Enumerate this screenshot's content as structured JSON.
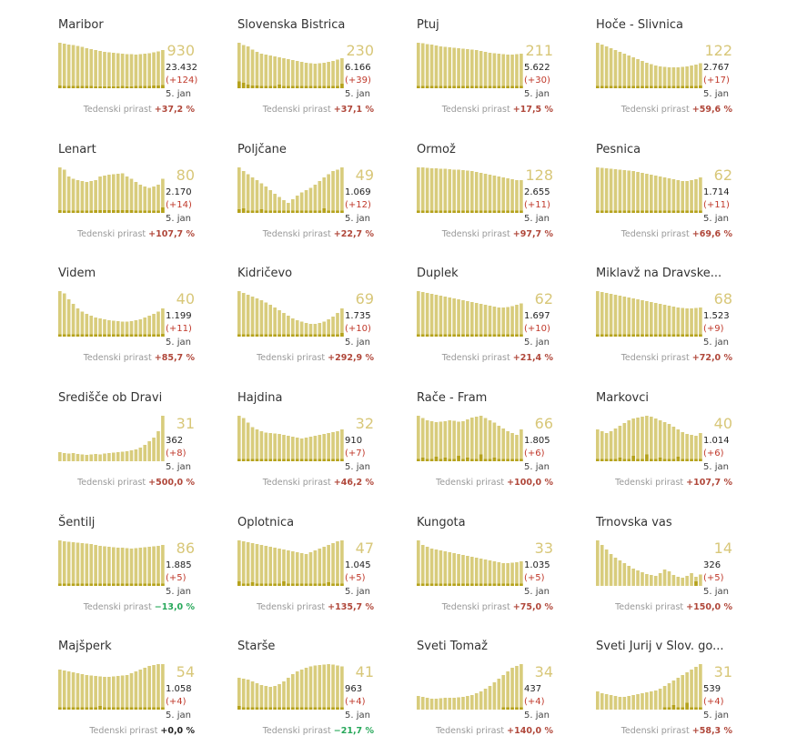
{
  "colors": {
    "bar": "#d8cc7c",
    "bar_dark": "#b5a21c",
    "big": "#d8c779",
    "growth_pos": "#b0473a",
    "growth_neg": "#27a85a"
  },
  "growth_label": "Tedenski prirast",
  "date_label": "5. jan",
  "chart_data": [
    {
      "type": "bar",
      "title": "Maribor",
      "big": "930",
      "total": "23.432",
      "delta": "(+124)",
      "growth": "+37,2 %",
      "values": [
        100,
        98,
        96,
        95,
        93,
        91,
        88,
        86,
        84,
        82,
        80,
        79,
        78,
        77,
        76,
        75,
        75,
        74,
        75,
        76,
        77,
        79,
        81,
        84
      ],
      "dark": [
        6,
        5,
        5,
        5,
        5,
        5,
        5,
        5,
        4,
        4,
        4,
        4,
        4,
        4,
        5,
        4,
        4,
        5,
        5,
        5,
        5,
        6,
        6,
        7
      ]
    },
    {
      "type": "bar",
      "title": "Slovenska Bistrica",
      "big": "230",
      "total": "6.166",
      "delta": "(+39)",
      "growth": "+37,1 %",
      "values": [
        100,
        95,
        92,
        85,
        80,
        76,
        74,
        72,
        70,
        68,
        66,
        64,
        62,
        60,
        58,
        56,
        55,
        54,
        55,
        56,
        58,
        60,
        63,
        66
      ],
      "dark": [
        15,
        12,
        8,
        6,
        6,
        5,
        5,
        5,
        5,
        8,
        5,
        5,
        5,
        5,
        5,
        5,
        5,
        5,
        5,
        5,
        5,
        5,
        5,
        10
      ]
    },
    {
      "type": "bar",
      "title": "Ptuj",
      "big": "211",
      "total": "5.622",
      "delta": "(+30)",
      "growth": "+17,5 %",
      "values": [
        100,
        99,
        97,
        96,
        94,
        92,
        91,
        90,
        89,
        88,
        87,
        86,
        85,
        84,
        82,
        80,
        78,
        77,
        76,
        75,
        74,
        74,
        75,
        76
      ],
      "dark": [
        5,
        5,
        5,
        5,
        5,
        5,
        5,
        5,
        5,
        5,
        5,
        5,
        5,
        5,
        5,
        5,
        5,
        5,
        5,
        5,
        5,
        5,
        5,
        5
      ]
    },
    {
      "type": "bar",
      "title": "Hoče - Slivnica",
      "big": "122",
      "total": "2.767",
      "delta": "(+17)",
      "growth": "+59,6 %",
      "values": [
        100,
        96,
        92,
        88,
        84,
        80,
        76,
        72,
        68,
        64,
        60,
        56,
        53,
        50,
        48,
        47,
        46,
        46,
        46,
        47,
        48,
        50,
        52,
        55
      ],
      "dark": [
        5,
        5,
        5,
        5,
        5,
        5,
        5,
        5,
        5,
        5,
        5,
        5,
        5,
        5,
        5,
        5,
        5,
        5,
        5,
        5,
        5,
        5,
        5,
        6
      ]
    },
    {
      "type": "bar",
      "title": "Lenart",
      "big": "80",
      "total": "2.170",
      "delta": "(+14)",
      "growth": "+107,7 %",
      "values": [
        100,
        95,
        80,
        75,
        72,
        70,
        68,
        70,
        72,
        80,
        82,
        84,
        85,
        86,
        87,
        80,
        75,
        68,
        62,
        58,
        55,
        58,
        62,
        75
      ],
      "dark": [
        6,
        5,
        5,
        5,
        5,
        5,
        5,
        5,
        6,
        6,
        6,
        6,
        6,
        6,
        6,
        6,
        6,
        5,
        5,
        5,
        5,
        5,
        5,
        12
      ]
    },
    {
      "type": "bar",
      "title": "Poljčane",
      "big": "49",
      "total": "1.069",
      "delta": "(+12)",
      "growth": "+22,7 %",
      "values": [
        100,
        92,
        85,
        78,
        72,
        65,
        58,
        50,
        42,
        35,
        28,
        22,
        30,
        38,
        45,
        50,
        55,
        62,
        70,
        78,
        85,
        92,
        95,
        100
      ],
      "dark": [
        8,
        10,
        5,
        5,
        5,
        8,
        5,
        5,
        5,
        5,
        5,
        5,
        5,
        5,
        5,
        5,
        5,
        5,
        5,
        10,
        5,
        5,
        5,
        5
      ]
    },
    {
      "type": "bar",
      "title": "Ormož",
      "big": "128",
      "total": "2.655",
      "delta": "(+11)",
      "growth": "+97,7 %",
      "values": [
        100,
        100,
        99,
        98,
        98,
        97,
        97,
        96,
        95,
        95,
        94,
        93,
        92,
        90,
        88,
        86,
        84,
        82,
        80,
        78,
        76,
        74,
        72,
        72
      ],
      "dark": [
        5,
        5,
        5,
        5,
        5,
        5,
        5,
        5,
        5,
        5,
        5,
        5,
        5,
        5,
        5,
        5,
        5,
        5,
        5,
        5,
        5,
        5,
        5,
        5
      ]
    },
    {
      "type": "bar",
      "title": "Pesnica",
      "big": "62",
      "total": "1.714",
      "delta": "(+11)",
      "growth": "+69,6 %",
      "values": [
        100,
        99,
        98,
        97,
        96,
        95,
        94,
        93,
        92,
        90,
        88,
        86,
        84,
        82,
        80,
        78,
        76,
        74,
        72,
        70,
        70,
        72,
        74,
        78
      ],
      "dark": [
        5,
        5,
        5,
        5,
        5,
        5,
        5,
        5,
        5,
        5,
        5,
        5,
        5,
        5,
        5,
        5,
        5,
        5,
        5,
        5,
        5,
        5,
        5,
        5
      ]
    },
    {
      "type": "bar",
      "title": "Videm",
      "big": "40",
      "total": "1.199",
      "delta": "(+11)",
      "growth": "+85,7 %",
      "values": [
        100,
        95,
        82,
        72,
        62,
        55,
        50,
        46,
        42,
        40,
        38,
        36,
        35,
        34,
        33,
        33,
        34,
        36,
        38,
        42,
        46,
        50,
        55,
        62
      ],
      "dark": [
        5,
        5,
        5,
        5,
        5,
        5,
        5,
        5,
        5,
        5,
        5,
        5,
        5,
        5,
        5,
        5,
        5,
        5,
        5,
        5,
        5,
        5,
        5,
        6
      ]
    },
    {
      "type": "bar",
      "title": "Kidričevo",
      "big": "69",
      "total": "1.735",
      "delta": "(+10)",
      "growth": "+292,9 %",
      "values": [
        100,
        96,
        92,
        88,
        84,
        80,
        75,
        70,
        64,
        58,
        52,
        46,
        40,
        36,
        33,
        30,
        28,
        28,
        30,
        33,
        38,
        44,
        52,
        62
      ],
      "dark": [
        5,
        5,
        5,
        5,
        5,
        5,
        5,
        5,
        5,
        5,
        5,
        5,
        5,
        5,
        5,
        5,
        5,
        5,
        5,
        5,
        5,
        5,
        5,
        8
      ]
    },
    {
      "type": "bar",
      "title": "Duplek",
      "big": "62",
      "total": "1.697",
      "delta": "(+10)",
      "growth": "+21,4 %",
      "values": [
        100,
        98,
        96,
        94,
        92,
        90,
        88,
        86,
        84,
        82,
        80,
        78,
        76,
        74,
        72,
        70,
        68,
        66,
        64,
        64,
        65,
        67,
        70,
        73
      ],
      "dark": [
        5,
        5,
        5,
        5,
        5,
        5,
        5,
        5,
        5,
        5,
        5,
        5,
        5,
        5,
        5,
        5,
        5,
        5,
        5,
        5,
        5,
        5,
        5,
        5
      ]
    },
    {
      "type": "bar",
      "title": "Miklavž na Dravske...",
      "big": "68",
      "total": "1.523",
      "delta": "(+9)",
      "growth": "+72,0 %",
      "values": [
        100,
        98,
        96,
        94,
        92,
        90,
        88,
        86,
        84,
        82,
        80,
        78,
        76,
        74,
        72,
        70,
        68,
        66,
        64,
        63,
        62,
        62,
        63,
        64
      ],
      "dark": [
        5,
        5,
        5,
        5,
        5,
        5,
        5,
        5,
        5,
        5,
        5,
        5,
        5,
        5,
        5,
        5,
        5,
        5,
        5,
        5,
        5,
        5,
        5,
        5
      ]
    },
    {
      "type": "bar",
      "title": "Središče ob Dravi",
      "big": "31",
      "total": "362",
      "delta": "(+8)",
      "growth": "+500,0 %",
      "values": [
        20,
        18,
        17,
        18,
        16,
        15,
        14,
        15,
        16,
        15,
        17,
        18,
        19,
        20,
        21,
        22,
        24,
        26,
        30,
        36,
        44,
        52,
        66,
        100
      ],
      "dark": [
        0,
        0,
        0,
        0,
        0,
        0,
        0,
        0,
        0,
        0,
        0,
        0,
        0,
        0,
        0,
        0,
        0,
        0,
        0,
        0,
        0,
        0,
        0,
        0
      ]
    },
    {
      "type": "bar",
      "title": "Hajdina",
      "big": "32",
      "total": "910",
      "delta": "(+7)",
      "growth": "+46,2 %",
      "values": [
        100,
        95,
        85,
        75,
        70,
        66,
        63,
        62,
        61,
        60,
        58,
        56,
        54,
        52,
        50,
        52,
        54,
        56,
        58,
        60,
        62,
        64,
        66,
        70
      ],
      "dark": [
        5,
        5,
        5,
        5,
        5,
        5,
        5,
        5,
        5,
        5,
        5,
        5,
        5,
        5,
        5,
        5,
        5,
        5,
        5,
        5,
        5,
        5,
        5,
        5
      ]
    },
    {
      "type": "bar",
      "title": "Rače - Fram",
      "big": "66",
      "total": "1.805",
      "delta": "(+6)",
      "growth": "+100,0 %",
      "values": [
        100,
        95,
        90,
        88,
        86,
        87,
        88,
        90,
        89,
        87,
        88,
        92,
        96,
        98,
        100,
        95,
        90,
        85,
        78,
        72,
        66,
        62,
        58,
        70
      ],
      "dark": [
        5,
        8,
        5,
        5,
        10,
        5,
        8,
        5,
        5,
        12,
        5,
        8,
        5,
        5,
        15,
        5,
        5,
        8,
        5,
        5,
        5,
        5,
        5,
        5
      ]
    },
    {
      "type": "bar",
      "title": "Markovci",
      "big": "40",
      "total": "1.014",
      "delta": "(+6)",
      "growth": "+107,7 %",
      "values": [
        70,
        66,
        62,
        66,
        72,
        78,
        84,
        90,
        94,
        96,
        98,
        100,
        98,
        94,
        90,
        86,
        82,
        76,
        70,
        64,
        60,
        58,
        56,
        62
      ],
      "dark": [
        5,
        5,
        5,
        5,
        5,
        8,
        5,
        5,
        12,
        5,
        5,
        15,
        5,
        5,
        8,
        5,
        5,
        5,
        10,
        5,
        5,
        5,
        5,
        5
      ]
    },
    {
      "type": "bar",
      "title": "Šentilj",
      "big": "86",
      "total": "1.885",
      "delta": "(+5)",
      "growth": "−13,0 %",
      "values": [
        100,
        98,
        97,
        96,
        95,
        94,
        93,
        92,
        90,
        88,
        87,
        86,
        85,
        84,
        84,
        83,
        82,
        83,
        84,
        85,
        86,
        87,
        88,
        90
      ],
      "dark": [
        5,
        5,
        5,
        5,
        5,
        5,
        5,
        5,
        5,
        5,
        5,
        5,
        5,
        5,
        5,
        5,
        5,
        5,
        5,
        5,
        5,
        5,
        5,
        5
      ]
    },
    {
      "type": "bar",
      "title": "Oplotnica",
      "big": "47",
      "total": "1.045",
      "delta": "(+5)",
      "growth": "+135,7 %",
      "values": [
        100,
        98,
        96,
        94,
        92,
        90,
        88,
        86,
        84,
        82,
        80,
        78,
        76,
        74,
        72,
        70,
        74,
        78,
        82,
        86,
        90,
        94,
        98,
        100
      ],
      "dark": [
        10,
        5,
        5,
        8,
        5,
        5,
        5,
        5,
        5,
        5,
        10,
        5,
        5,
        5,
        5,
        5,
        5,
        5,
        5,
        5,
        8,
        5,
        5,
        5
      ]
    },
    {
      "type": "bar",
      "title": "Kungota",
      "big": "33",
      "total": "1.035",
      "delta": "(+5)",
      "growth": "+75,0 %",
      "values": [
        100,
        90,
        86,
        82,
        80,
        78,
        76,
        74,
        72,
        70,
        68,
        66,
        64,
        62,
        60,
        58,
        56,
        54,
        52,
        50,
        50,
        51,
        52,
        54
      ],
      "dark": [
        5,
        5,
        5,
        5,
        5,
        5,
        5,
        5,
        5,
        5,
        5,
        5,
        5,
        5,
        5,
        5,
        5,
        5,
        5,
        5,
        5,
        5,
        5,
        5
      ]
    },
    {
      "type": "bar",
      "title": "Trnovska vas",
      "big": "14",
      "total": "326",
      "delta": "(+5)",
      "growth": "+150,0 %",
      "values": [
        100,
        90,
        80,
        70,
        62,
        56,
        50,
        44,
        38,
        34,
        30,
        26,
        24,
        22,
        28,
        36,
        32,
        24,
        20,
        18,
        22,
        28,
        20,
        25
      ],
      "dark": [
        0,
        0,
        0,
        0,
        0,
        0,
        0,
        0,
        0,
        0,
        0,
        0,
        0,
        0,
        0,
        0,
        0,
        0,
        0,
        0,
        0,
        0,
        10,
        0
      ]
    },
    {
      "type": "bar",
      "title": "Majšperk",
      "big": "54",
      "total": "1.058",
      "delta": "(+4)",
      "growth": "+0,0 %",
      "values": [
        88,
        86,
        84,
        82,
        80,
        78,
        76,
        75,
        74,
        73,
        72,
        72,
        73,
        74,
        75,
        76,
        80,
        84,
        88,
        92,
        96,
        98,
        100,
        100
      ],
      "dark": [
        5,
        5,
        5,
        5,
        5,
        5,
        5,
        5,
        5,
        8,
        5,
        5,
        5,
        5,
        5,
        5,
        5,
        5,
        5,
        5,
        5,
        5,
        5,
        5
      ]
    },
    {
      "type": "bar",
      "title": "Starše",
      "big": "41",
      "total": "963",
      "delta": "(+4)",
      "growth": "−21,7 %",
      "values": [
        70,
        68,
        66,
        62,
        58,
        54,
        52,
        50,
        52,
        56,
        62,
        70,
        78,
        84,
        88,
        92,
        95,
        97,
        98,
        99,
        100,
        99,
        97,
        95
      ],
      "dark": [
        8,
        5,
        5,
        5,
        5,
        5,
        5,
        5,
        5,
        5,
        5,
        5,
        5,
        5,
        5,
        5,
        5,
        5,
        5,
        5,
        5,
        5,
        5,
        5
      ]
    },
    {
      "type": "bar",
      "title": "Sveti Tomaž",
      "big": "34",
      "total": "437",
      "delta": "(+4)",
      "growth": "+140,0 %",
      "values": [
        30,
        28,
        26,
        24,
        24,
        25,
        26,
        26,
        26,
        27,
        28,
        30,
        32,
        36,
        40,
        46,
        52,
        60,
        68,
        76,
        84,
        92,
        96,
        100
      ],
      "dark": [
        0,
        0,
        0,
        0,
        0,
        0,
        0,
        0,
        0,
        0,
        0,
        0,
        0,
        0,
        0,
        0,
        0,
        0,
        0,
        5,
        5,
        5,
        5,
        5
      ]
    },
    {
      "type": "bar",
      "title": "Sveti Jurij v Slov. go...",
      "big": "31",
      "total": "539",
      "delta": "(+4)",
      "growth": "+58,3 %",
      "values": [
        40,
        36,
        34,
        32,
        30,
        28,
        28,
        30,
        32,
        34,
        36,
        38,
        40,
        42,
        46,
        52,
        58,
        64,
        70,
        76,
        82,
        88,
        94,
        100
      ],
      "dark": [
        0,
        0,
        0,
        0,
        0,
        0,
        0,
        0,
        0,
        0,
        0,
        0,
        0,
        0,
        0,
        5,
        5,
        10,
        5,
        5,
        15,
        5,
        5,
        5
      ]
    }
  ]
}
